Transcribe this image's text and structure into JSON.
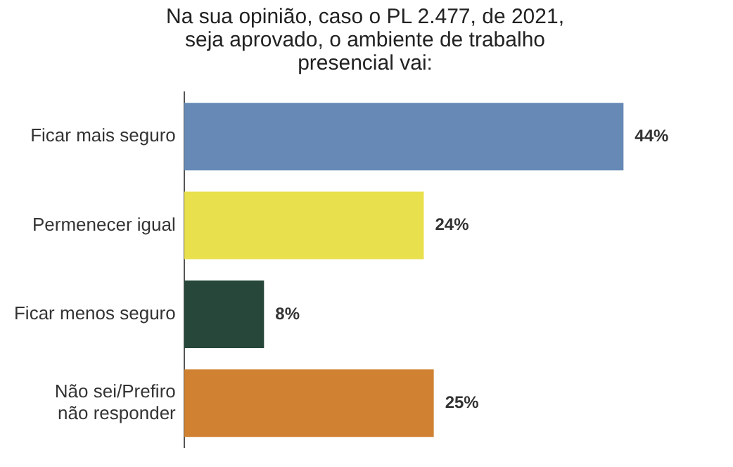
{
  "chart_data": {
    "type": "bar",
    "orientation": "horizontal",
    "title": "Na sua opinião, caso o PL 2.477, de 2021,\nseja aprovado, o ambiente de trabalho\npresencial vai:",
    "categories": [
      "Ficar mais seguro",
      "Permenecer igual",
      "Ficar menos seguro",
      "Não sei/Prefiro\nnão responder"
    ],
    "values": [
      44,
      24,
      8,
      25
    ],
    "colors": [
      "#6689b5",
      "#e9e04e",
      "#27473b",
      "#d08232"
    ],
    "value_labels": [
      "44%",
      "24%",
      "8%",
      "25%"
    ],
    "legend": false
  }
}
